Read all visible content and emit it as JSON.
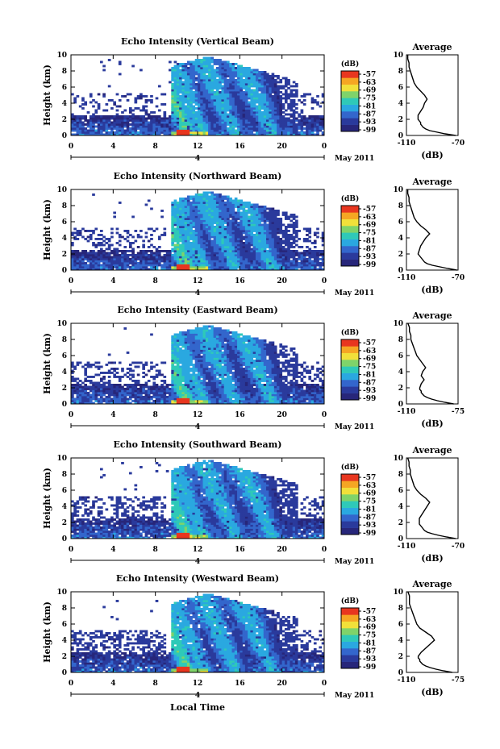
{
  "figure": {
    "colorbar_unit": "(dB)",
    "colorbar_ticks": [
      "-57",
      "-63",
      "-69",
      "-75",
      "-81",
      "-87",
      "-93",
      "-99"
    ],
    "colorbar_colors": [
      "#27267a",
      "#2a3a9c",
      "#3366cc",
      "#2aa8e0",
      "#2fc9b8",
      "#7fd36a",
      "#f1e03a",
      "#f5a623",
      "#e8361f"
    ],
    "date_label": "May 2011",
    "day_label": "4",
    "xlabel": "Local Time",
    "x_ticks": [
      "0",
      "4",
      "8",
      "12",
      "16",
      "20",
      "0"
    ],
    "ylabel": "Height (km)",
    "y_ticks": [
      "0",
      "2",
      "4",
      "6",
      "8",
      "10"
    ],
    "avg_title": "Average",
    "avg_xlabel": "(dB)"
  },
  "chart_data": [
    {
      "type": "heatmap",
      "title": "Echo Intensity (Vertical Beam)",
      "ylabel": "Height (km)",
      "xlabel": "",
      "xlim": [
        0,
        24
      ],
      "ylim": [
        0,
        10
      ],
      "colorbar_range_db": [
        -99,
        -57
      ],
      "convective_cells_lt": [
        10.5,
        12.0,
        15.0,
        18.5
      ],
      "profile": {
        "title": "Average",
        "xlabel": "(dB)",
        "xlim": [
          -110,
          -70
        ],
        "xticks": [
          "-110",
          "-70"
        ],
        "heights": [
          0,
          0.2,
          0.4,
          0.6,
          0.8,
          1,
          1.2,
          1.4,
          1.6,
          1.8,
          2,
          2.5,
          3,
          3.5,
          4,
          4.5,
          5,
          5.5,
          6,
          6.5,
          7,
          7.5,
          8,
          8.5,
          9,
          9.5,
          10
        ],
        "values": [
          -72,
          -80,
          -86,
          -92,
          -95,
          -97,
          -98,
          -99,
          -99,
          -100,
          -101,
          -101,
          -99,
          -97,
          -96,
          -94,
          -96,
          -99,
          -102,
          -104,
          -105,
          -106,
          -107,
          -108,
          -108,
          -109,
          -109
        ]
      }
    },
    {
      "type": "heatmap",
      "title": "Echo Intensity (Northward Beam)",
      "ylabel": "Height (km)",
      "xlabel": "",
      "xlim": [
        0,
        24
      ],
      "ylim": [
        0,
        10
      ],
      "colorbar_range_db": [
        -99,
        -57
      ],
      "convective_cells_lt": [
        10.5,
        12.0,
        15.0,
        18.5
      ],
      "profile": {
        "title": "Average",
        "xlabel": "(dB)",
        "xlim": [
          -110,
          -70
        ],
        "xticks": [
          "-110",
          "-70"
        ],
        "heights": [
          0,
          0.2,
          0.4,
          0.6,
          0.8,
          1,
          1.2,
          1.4,
          1.6,
          1.8,
          2,
          2.5,
          3,
          3.5,
          4,
          4.5,
          5,
          5.5,
          6,
          6.5,
          7,
          7.5,
          8,
          8.5,
          9,
          9.5,
          10
        ],
        "values": [
          -71,
          -78,
          -84,
          -90,
          -94,
          -96,
          -97,
          -98,
          -99,
          -100,
          -101,
          -100,
          -99,
          -97,
          -95,
          -92,
          -95,
          -99,
          -102,
          -104,
          -105,
          -106,
          -107,
          -108,
          -108,
          -109,
          -109
        ]
      }
    },
    {
      "type": "heatmap",
      "title": "Echo Intensity (Eastward Beam)",
      "ylabel": "Height (km)",
      "xlabel": "",
      "xlim": [
        0,
        24
      ],
      "ylim": [
        0,
        10
      ],
      "colorbar_range_db": [
        -99,
        -57
      ],
      "convective_cells_lt": [
        10.5,
        12.0,
        15.0,
        18.5
      ],
      "profile": {
        "title": "Average",
        "xlabel": "(dB)",
        "xlim": [
          -110,
          -75
        ],
        "xticks": [
          "-110",
          "-75"
        ],
        "heights": [
          0,
          0.2,
          0.4,
          0.6,
          0.8,
          1,
          1.2,
          1.4,
          1.6,
          1.8,
          2,
          2.5,
          3,
          3.5,
          4,
          4.5,
          5,
          5.5,
          6,
          6.5,
          7,
          7.5,
          8,
          8.5,
          9,
          9.5,
          10
        ],
        "values": [
          -78,
          -84,
          -89,
          -93,
          -96,
          -98,
          -99,
          -100,
          -100,
          -101,
          -101,
          -100,
          -98,
          -100,
          -99,
          -97,
          -99,
          -101,
          -103,
          -104,
          -105,
          -106,
          -107,
          -107,
          -108,
          -108,
          -109
        ]
      }
    },
    {
      "type": "heatmap",
      "title": "Echo Intensity (Southward Beam)",
      "ylabel": "Height (km)",
      "xlabel": "",
      "xlim": [
        0,
        24
      ],
      "ylim": [
        0,
        10
      ],
      "colorbar_range_db": [
        -99,
        -57
      ],
      "convective_cells_lt": [
        10.5,
        12.0,
        15.0,
        18.5
      ],
      "profile": {
        "title": "Average",
        "xlabel": "(dB)",
        "xlim": [
          -110,
          -70
        ],
        "xticks": [
          "-110",
          "-70"
        ],
        "heights": [
          0,
          0.2,
          0.4,
          0.6,
          0.8,
          1,
          1.2,
          1.4,
          1.6,
          1.8,
          2,
          2.5,
          3,
          3.5,
          4,
          4.5,
          5,
          5.5,
          6,
          6.5,
          7,
          7.5,
          8,
          8.5,
          9,
          9.5,
          10
        ],
        "values": [
          -72,
          -79,
          -85,
          -90,
          -94,
          -96,
          -97,
          -98,
          -99,
          -100,
          -100,
          -100,
          -98,
          -96,
          -94,
          -92,
          -95,
          -99,
          -102,
          -104,
          -105,
          -106,
          -107,
          -107,
          -108,
          -108,
          -109
        ]
      }
    },
    {
      "type": "heatmap",
      "title": "Echo Intensity (Westward Beam)",
      "ylabel": "Height (km)",
      "xlabel": "Local Time",
      "xlim": [
        0,
        24
      ],
      "ylim": [
        0,
        10
      ],
      "colorbar_range_db": [
        -99,
        -57
      ],
      "convective_cells_lt": [
        10.5,
        12.0,
        15.0,
        18.5
      ],
      "profile": {
        "title": "Average",
        "xlabel": "(dB)",
        "xlim": [
          -110,
          -75
        ],
        "xticks": [
          "-110",
          "-75"
        ],
        "heights": [
          0,
          0.2,
          0.4,
          0.6,
          0.8,
          1,
          1.2,
          1.4,
          1.6,
          1.8,
          2,
          2.5,
          3,
          3.5,
          4,
          4.5,
          5,
          5.5,
          6,
          6.5,
          7,
          7.5,
          8,
          8.5,
          9,
          9.5,
          10
        ],
        "values": [
          -79,
          -85,
          -90,
          -94,
          -97,
          -99,
          -100,
          -101,
          -101,
          -102,
          -102,
          -100,
          -97,
          -94,
          -91,
          -93,
          -97,
          -101,
          -103,
          -104,
          -105,
          -106,
          -107,
          -108,
          -108,
          -108,
          -109
        ]
      }
    }
  ]
}
